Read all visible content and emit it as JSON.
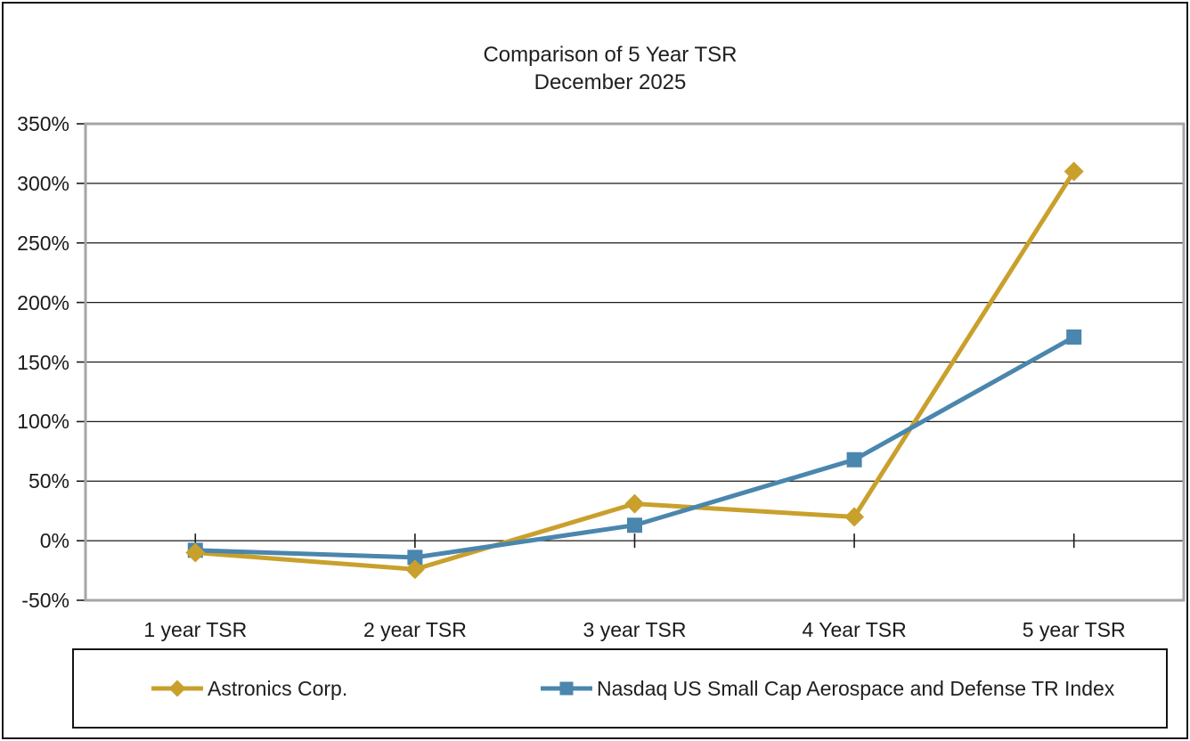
{
  "chart_data": {
    "type": "line",
    "title": "Comparison of 5 Year TSR",
    "subtitle": "December 2025",
    "categories": [
      "1 year TSR",
      "2 year TSR",
      "3 year TSR",
      "4 Year TSR",
      "5 year TSR"
    ],
    "series": [
      {
        "name": "Astronics Corp.",
        "marker": "diamond",
        "color": "#C9A02C",
        "values": [
          -10,
          -24,
          31,
          20,
          310
        ]
      },
      {
        "name": "Nasdaq US Small Cap Aerospace and Defense TR Index",
        "marker": "square",
        "color": "#4A86AD",
        "values": [
          -8,
          -14,
          13,
          68,
          171
        ]
      }
    ],
    "y_axis": {
      "min": -50,
      "max": 350,
      "step": 50,
      "unit": "%"
    },
    "grid": true,
    "legend_position": "bottom"
  },
  "colors": {
    "background": "#FFFFFF",
    "plot_border": "#A6A6A6",
    "gridline": "#1a1a1a",
    "tick": "#1a1a1a",
    "text": "#1f1f1f"
  }
}
